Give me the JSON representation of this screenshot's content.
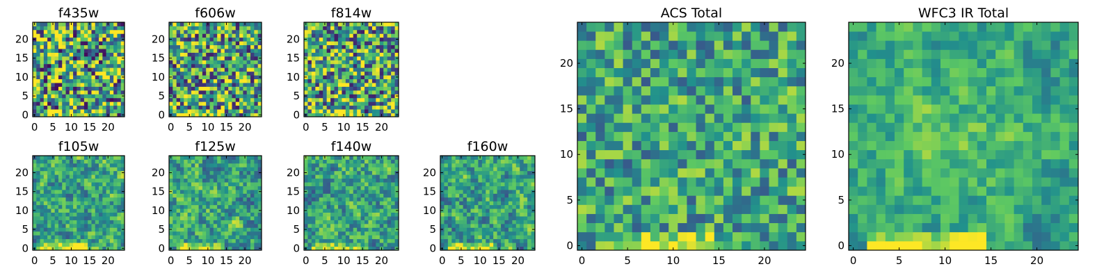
{
  "figure": {
    "type": "heatmap-grid",
    "colormap": "viridis",
    "colormap_stops": [
      "#440154",
      "#3b528b",
      "#21918c",
      "#5ec962",
      "#fde725"
    ]
  },
  "chart_data": [
    {
      "type": "heatmap",
      "title": "f435w",
      "xlabel": "",
      "ylabel": "",
      "grid_size": [
        25,
        25
      ],
      "xlim": [
        -0.5,
        24.5
      ],
      "ylim": [
        -0.5,
        24.5
      ],
      "xticks": [
        0,
        5,
        10,
        15,
        20
      ],
      "yticks": [
        0,
        5,
        10,
        15,
        20
      ],
      "texture": "fine",
      "noise": 0.55,
      "seed": 11
    },
    {
      "type": "heatmap",
      "title": "f606w",
      "xlabel": "",
      "ylabel": "",
      "grid_size": [
        25,
        25
      ],
      "xlim": [
        -0.5,
        24.5
      ],
      "ylim": [
        -0.5,
        24.5
      ],
      "xticks": [
        0,
        5,
        10,
        15,
        20
      ],
      "yticks": [
        0,
        5,
        10,
        15,
        20
      ],
      "texture": "fine",
      "noise": 0.5,
      "seed": 23
    },
    {
      "type": "heatmap",
      "title": "f814w",
      "xlabel": "",
      "ylabel": "",
      "grid_size": [
        25,
        25
      ],
      "xlim": [
        -0.5,
        24.5
      ],
      "ylim": [
        -0.5,
        24.5
      ],
      "xticks": [
        0,
        5,
        10,
        15,
        20
      ],
      "yticks": [
        0,
        5,
        10,
        15,
        20
      ],
      "texture": "fine",
      "noise": 0.5,
      "seed": 37
    },
    {
      "type": "heatmap",
      "title": "f105w",
      "xlabel": "",
      "ylabel": "",
      "grid_size": [
        25,
        25
      ],
      "xlim": [
        -0.5,
        24.5
      ],
      "ylim": [
        -0.5,
        24.5
      ],
      "xticks": [
        0,
        5,
        10,
        15,
        20
      ],
      "yticks": [
        0,
        5,
        10,
        15,
        20
      ],
      "texture": "coarse",
      "noise": 0.45,
      "seed": 41
    },
    {
      "type": "heatmap",
      "title": "f125w",
      "xlabel": "",
      "ylabel": "",
      "grid_size": [
        25,
        25
      ],
      "xlim": [
        -0.5,
        24.5
      ],
      "ylim": [
        -0.5,
        24.5
      ],
      "xticks": [
        0,
        5,
        10,
        15,
        20
      ],
      "yticks": [
        0,
        5,
        10,
        15,
        20
      ],
      "texture": "coarse",
      "noise": 0.45,
      "seed": 53
    },
    {
      "type": "heatmap",
      "title": "f140w",
      "xlabel": "",
      "ylabel": "",
      "grid_size": [
        25,
        25
      ],
      "xlim": [
        -0.5,
        24.5
      ],
      "ylim": [
        -0.5,
        24.5
      ],
      "xticks": [
        0,
        5,
        10,
        15,
        20
      ],
      "yticks": [
        0,
        5,
        10,
        15,
        20
      ],
      "texture": "coarse",
      "noise": 0.45,
      "seed": 67
    },
    {
      "type": "heatmap",
      "title": "f160w",
      "xlabel": "",
      "ylabel": "",
      "grid_size": [
        25,
        25
      ],
      "xlim": [
        -0.5,
        24.5
      ],
      "ylim": [
        -0.5,
        24.5
      ],
      "xticks": [
        0,
        5,
        10,
        15,
        20
      ],
      "yticks": [
        0,
        5,
        10,
        15,
        20
      ],
      "texture": "coarse",
      "noise": 0.45,
      "seed": 79
    },
    {
      "type": "heatmap",
      "title": "ACS Total",
      "xlabel": "",
      "ylabel": "",
      "grid_size": [
        25,
        25
      ],
      "xlim": [
        -0.5,
        24.5
      ],
      "ylim": [
        -0.5,
        24.5
      ],
      "xticks": [
        0,
        5,
        10,
        15,
        20
      ],
      "yticks": [
        0,
        5,
        10,
        15,
        20
      ],
      "texture": "fine",
      "noise": 0.3,
      "seed": 97
    },
    {
      "type": "heatmap",
      "title": "WFC3 IR Total",
      "xlabel": "",
      "ylabel": "",
      "grid_size": [
        25,
        25
      ],
      "xlim": [
        -0.5,
        24.5
      ],
      "ylim": [
        -0.5,
        24.5
      ],
      "xticks": [
        0,
        5,
        10,
        15,
        20
      ],
      "yticks": [
        0,
        5,
        10,
        15,
        20
      ],
      "texture": "coarse",
      "noise": 0.3,
      "seed": 131
    }
  ]
}
